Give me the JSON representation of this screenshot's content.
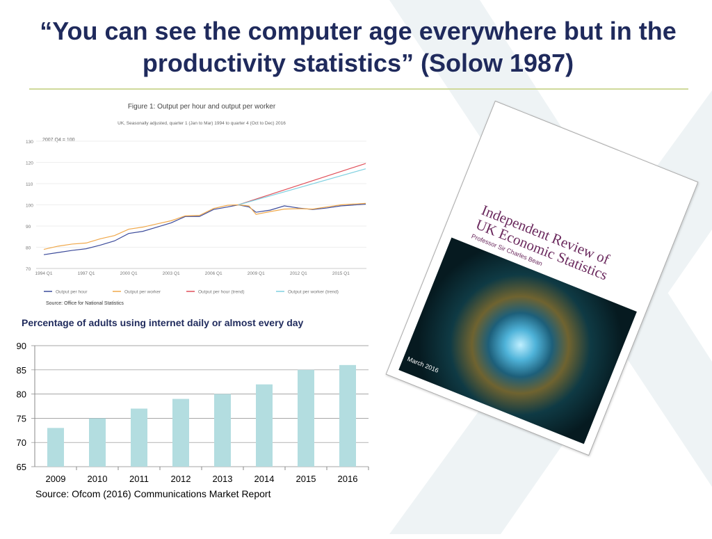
{
  "slide": {
    "title": "“You can see the computer age everywhere but in the productivity statistics” (Solow 1987)"
  },
  "book": {
    "title_line1": "Independent Review of",
    "title_line2": "UK Economic Statistics",
    "author": "Professor Sir Charles Bean",
    "date": "March 2016"
  },
  "colors": {
    "title": "#1f2a5c",
    "bar": "#b3dde0",
    "rule": "#cfd99a",
    "hour": "#3b4a9a",
    "worker": "#f0a84a",
    "hour_trend": "#e0505a",
    "worker_trend": "#7fd0e0"
  },
  "chart_data": [
    {
      "type": "line",
      "title": "Figure 1: Output per hour and output per worker",
      "subtitle": "UK, Seasonally adjusted, quarter 1 (Jan to Mar) 1994 to quarter 4 (Oct to Dec) 2016",
      "ylabel": "2007 Q4 = 100",
      "ylim": [
        70,
        130
      ],
      "yticks": [
        "70",
        "80",
        "90",
        "100",
        "110",
        "120",
        "130"
      ],
      "xticks": [
        "1994 Q1",
        "1997 Q1",
        "2000 Q1",
        "2003 Q1",
        "2006 Q1",
        "2009 Q1",
        "2012 Q1",
        "2015 Q1"
      ],
      "grid": true,
      "legend": "bottom",
      "source": "Source: Office for National Statistics",
      "series": [
        {
          "name": "Output per hour",
          "x": [
            "1994 Q1",
            "1995 Q1",
            "1996 Q1",
            "1997 Q1",
            "1998 Q1",
            "1999 Q1",
            "2000 Q1",
            "2001 Q1",
            "2002 Q1",
            "2003 Q1",
            "2004 Q1",
            "2005 Q1",
            "2006 Q1",
            "2007 Q1",
            "2007 Q4",
            "2008 Q3",
            "2009 Q1",
            "2010 Q1",
            "2011 Q1",
            "2012 Q1",
            "2013 Q1",
            "2014 Q1",
            "2015 Q1",
            "2016 Q4"
          ],
          "y": [
            76.5,
            77.5,
            78.5,
            79.3,
            81,
            83,
            86.5,
            87.5,
            89.5,
            91.5,
            94.5,
            94.5,
            97.8,
            99,
            100,
            99,
            96.5,
            97.5,
            99.5,
            98.5,
            97.8,
            98.5,
            99.5,
            100.3
          ]
        },
        {
          "name": "Output per worker",
          "x": [
            "1994 Q1",
            "1995 Q1",
            "1996 Q1",
            "1997 Q1",
            "1998 Q1",
            "1999 Q1",
            "2000 Q1",
            "2001 Q1",
            "2002 Q1",
            "2003 Q1",
            "2004 Q1",
            "2005 Q1",
            "2006 Q1",
            "2007 Q1",
            "2007 Q4",
            "2008 Q3",
            "2009 Q1",
            "2010 Q1",
            "2011 Q1",
            "2012 Q1",
            "2013 Q1",
            "2014 Q1",
            "2015 Q1",
            "2016 Q4"
          ],
          "y": [
            79,
            80.5,
            81.5,
            82,
            84,
            85.5,
            88.5,
            89.5,
            91,
            92.5,
            94.8,
            95,
            98.3,
            99.8,
            100,
            99.5,
            95.5,
            96.8,
            98,
            98.2,
            98,
            99,
            100,
            100.7
          ]
        },
        {
          "name": "Output per hour (trend)",
          "x": [
            "2007 Q4",
            "2016 Q4"
          ],
          "y": [
            100,
            119.5
          ]
        },
        {
          "name": "Output per worker (trend)",
          "x": [
            "2007 Q4",
            "2016 Q4"
          ],
          "y": [
            100,
            117
          ]
        }
      ]
    },
    {
      "type": "bar",
      "title": "Percentage of adults using internet daily or almost every day",
      "categories": [
        "2009",
        "2010",
        "2011",
        "2012",
        "2013",
        "2014",
        "2015",
        "2016"
      ],
      "values": [
        73,
        75,
        77,
        79,
        80,
        82,
        85,
        86
      ],
      "ylim": [
        65,
        90
      ],
      "yticks": [
        "65",
        "70",
        "75",
        "80",
        "85",
        "90"
      ],
      "grid": true,
      "source": "Source:  Ofcom (2016) Communications Market Report"
    }
  ]
}
